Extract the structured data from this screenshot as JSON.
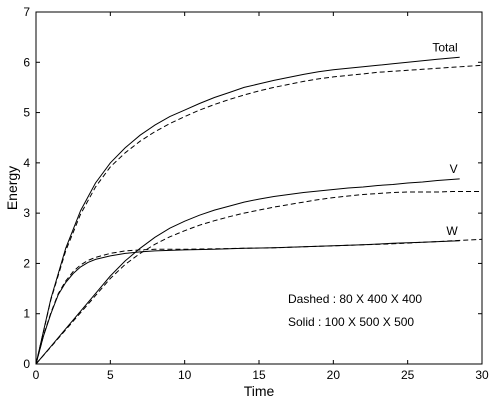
{
  "chart_data": {
    "type": "line",
    "title": "",
    "xlabel": "Time",
    "ylabel": "Energy",
    "xlim": [
      0,
      30
    ],
    "ylim": [
      0,
      7
    ],
    "x_ticks": [
      0,
      5,
      10,
      15,
      20,
      25,
      30
    ],
    "y_ticks": [
      0,
      1,
      2,
      3,
      4,
      5,
      6,
      7
    ],
    "grid": false,
    "annotations": [
      "Dashed : 80 X 400 X 400",
      "Solid : 100 X 500 X 500"
    ],
    "series": [
      {
        "name": "Total",
        "style": "solid",
        "x": [
          0,
          1,
          2,
          3,
          4,
          5,
          6,
          7,
          8,
          9,
          10,
          11,
          12,
          13,
          14,
          15,
          16,
          17,
          18,
          19,
          20,
          21,
          22,
          23,
          24,
          25,
          26,
          27,
          28.5
        ],
        "y": [
          0,
          1.3,
          2.3,
          3.05,
          3.6,
          4.0,
          4.3,
          4.55,
          4.75,
          4.92,
          5.05,
          5.18,
          5.3,
          5.4,
          5.5,
          5.57,
          5.64,
          5.7,
          5.76,
          5.81,
          5.85,
          5.88,
          5.91,
          5.94,
          5.97,
          6.0,
          6.03,
          6.06,
          6.1
        ]
      },
      {
        "name": "",
        "style": "dashed",
        "x": [
          0,
          1,
          2,
          3,
          4,
          5,
          6,
          7,
          8,
          9,
          10,
          11,
          12,
          13,
          14,
          15,
          16,
          17,
          18,
          19,
          20,
          21,
          22,
          23,
          24,
          25,
          26,
          27,
          28,
          29,
          30
        ],
        "y": [
          0,
          1.28,
          2.25,
          2.98,
          3.52,
          3.92,
          4.2,
          4.43,
          4.62,
          4.78,
          4.92,
          5.05,
          5.16,
          5.26,
          5.35,
          5.43,
          5.5,
          5.56,
          5.62,
          5.67,
          5.71,
          5.74,
          5.77,
          5.8,
          5.82,
          5.84,
          5.86,
          5.88,
          5.9,
          5.92,
          5.94
        ]
      },
      {
        "name": "V",
        "style": "solid",
        "x": [
          0,
          1,
          2,
          3,
          4,
          5,
          6,
          7,
          8,
          9,
          10,
          11,
          12,
          13,
          14,
          15,
          16,
          17,
          18,
          19,
          20,
          21,
          22,
          23,
          24,
          25,
          26,
          27,
          28.5
        ],
        "y": [
          0,
          0.35,
          0.7,
          1.05,
          1.4,
          1.75,
          2.05,
          2.3,
          2.52,
          2.7,
          2.84,
          2.96,
          3.06,
          3.14,
          3.22,
          3.28,
          3.33,
          3.37,
          3.41,
          3.44,
          3.47,
          3.5,
          3.52,
          3.55,
          3.57,
          3.6,
          3.62,
          3.65,
          3.68
        ]
      },
      {
        "name": "",
        "style": "dashed",
        "x": [
          0,
          1,
          2,
          3,
          4,
          5,
          6,
          7,
          8,
          9,
          10,
          11,
          12,
          13,
          14,
          15,
          16,
          17,
          18,
          19,
          20,
          21,
          22,
          23,
          24,
          25,
          26,
          27,
          28,
          29,
          30
        ],
        "y": [
          0,
          0.34,
          0.68,
          1.02,
          1.36,
          1.7,
          1.98,
          2.2,
          2.38,
          2.53,
          2.65,
          2.76,
          2.85,
          2.93,
          3.0,
          3.06,
          3.12,
          3.17,
          3.22,
          3.27,
          3.31,
          3.34,
          3.37,
          3.39,
          3.41,
          3.42,
          3.42,
          3.42,
          3.43,
          3.43,
          3.43
        ]
      },
      {
        "name": "W",
        "style": "solid",
        "x": [
          0,
          0.5,
          1,
          1.5,
          2,
          2.5,
          3,
          3.5,
          4,
          5,
          6,
          7,
          8,
          9,
          10,
          12,
          14,
          16,
          18,
          20,
          22,
          24,
          26,
          28.5
        ],
        "y": [
          0,
          0.55,
          1.0,
          1.38,
          1.62,
          1.8,
          1.93,
          2.02,
          2.08,
          2.15,
          2.2,
          2.23,
          2.25,
          2.26,
          2.27,
          2.28,
          2.3,
          2.31,
          2.33,
          2.35,
          2.37,
          2.4,
          2.42,
          2.45
        ]
      },
      {
        "name": "",
        "style": "dashed",
        "x": [
          0,
          0.5,
          1,
          1.5,
          2,
          2.5,
          3,
          3.5,
          4,
          5,
          6,
          7,
          8,
          9,
          10,
          12,
          14,
          16,
          18,
          20,
          22,
          24,
          26,
          28,
          30
        ],
        "y": [
          0,
          0.56,
          1.02,
          1.4,
          1.65,
          1.84,
          1.97,
          2.06,
          2.12,
          2.2,
          2.25,
          2.27,
          2.28,
          2.28,
          2.28,
          2.29,
          2.3,
          2.31,
          2.33,
          2.35,
          2.37,
          2.39,
          2.42,
          2.45,
          2.48
        ]
      }
    ]
  }
}
